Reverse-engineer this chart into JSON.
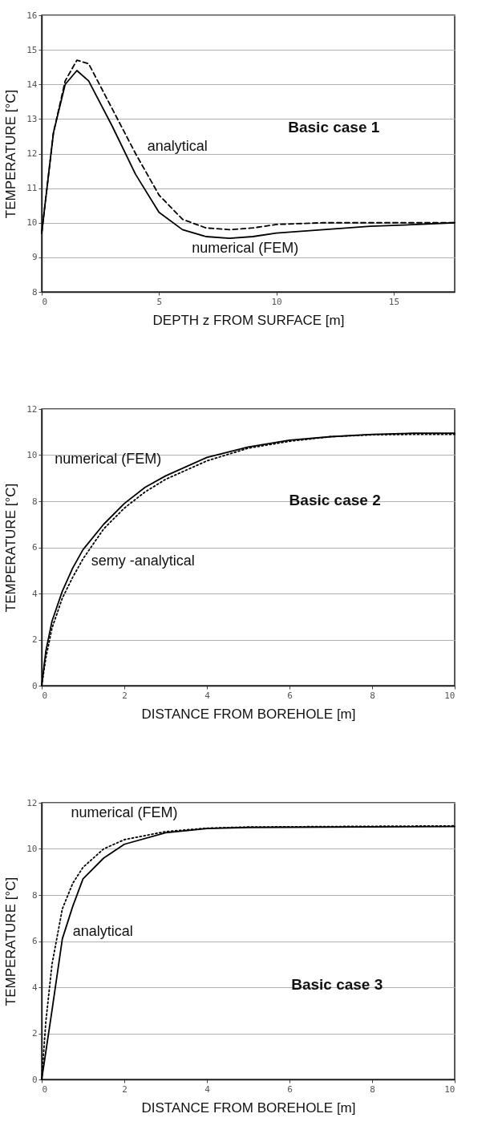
{
  "chart_data": [
    {
      "type": "line",
      "xlabel": "DEPTH  z  FROM  SURFACE  [m]",
      "ylabel": "TEMPERATURE  [°C]",
      "xlim": [
        0,
        17.6
      ],
      "ylim": [
        8,
        16
      ],
      "xticks": [
        0,
        5,
        10,
        15
      ],
      "yticks": [
        8,
        9,
        10,
        11,
        12,
        13,
        14,
        15,
        16
      ],
      "grid": "y",
      "marker": "none",
      "annotations": [
        "Basic case 1"
      ],
      "x": [
        0,
        0.5,
        1,
        1.5,
        2,
        3,
        4,
        5,
        6,
        7,
        8,
        9,
        10,
        12,
        14,
        16,
        17.6
      ],
      "series": [
        {
          "name": "numerical (FEM)",
          "color": "#000000",
          "line_style": "solid",
          "values": [
            9.7,
            12.6,
            14.0,
            14.4,
            14.1,
            12.8,
            11.4,
            10.3,
            9.8,
            9.6,
            9.55,
            9.6,
            9.7,
            9.8,
            9.9,
            9.95,
            10.0
          ]
        },
        {
          "name": "analytical",
          "color": "#000000",
          "line_style": "dashed",
          "values": [
            9.7,
            12.6,
            14.1,
            14.7,
            14.6,
            13.3,
            12.0,
            10.8,
            10.1,
            9.85,
            9.8,
            9.85,
            9.95,
            10.0,
            10.0,
            10.0,
            10.0
          ]
        }
      ]
    },
    {
      "type": "line",
      "xlabel": "DISTANCE  FROM  BOREHOLE  [m]",
      "ylabel": "TEMPERATURE  [°C]",
      "xlim": [
        0,
        10
      ],
      "ylim": [
        0,
        12
      ],
      "xticks": [
        0,
        2,
        4,
        6,
        8,
        10
      ],
      "yticks": [
        0,
        2,
        4,
        6,
        8,
        10,
        12
      ],
      "grid": "y",
      "marker": "none",
      "annotations": [
        "Basic case 2"
      ],
      "x": [
        0,
        0.1,
        0.25,
        0.5,
        0.75,
        1,
        1.5,
        2,
        2.5,
        3,
        4,
        5,
        6,
        7,
        8,
        9,
        10
      ],
      "series": [
        {
          "name": "numerical (FEM)",
          "color": "#000000",
          "line_style": "solid",
          "values": [
            0,
            1.5,
            2.8,
            4.1,
            5.1,
            5.9,
            7.0,
            7.9,
            8.6,
            9.1,
            9.9,
            10.35,
            10.65,
            10.8,
            10.9,
            10.95,
            10.95
          ]
        },
        {
          "name": "semy -analytical",
          "color": "#000000",
          "line_style": "dotted",
          "values": [
            0,
            1.2,
            2.5,
            3.8,
            4.7,
            5.5,
            6.8,
            7.7,
            8.4,
            8.95,
            9.75,
            10.3,
            10.6,
            10.8,
            10.88,
            10.9,
            10.9
          ]
        }
      ]
    },
    {
      "type": "line",
      "xlabel": "DISTANCE  FROM  BOREHOLE  [m]",
      "ylabel": "TEMPERATURE  [°C]",
      "xlim": [
        0,
        10
      ],
      "ylim": [
        0,
        12
      ],
      "xticks": [
        0,
        2,
        4,
        6,
        8,
        10
      ],
      "yticks": [
        0,
        2,
        4,
        6,
        8,
        10,
        12
      ],
      "grid": "y",
      "marker": "none",
      "annotations": [
        "Basic case 3"
      ],
      "x": [
        0,
        0.1,
        0.25,
        0.5,
        0.75,
        1,
        1.5,
        2,
        3,
        4,
        5,
        10
      ],
      "series": [
        {
          "name": "numerical (FEM)",
          "color": "#000000",
          "line_style": "dotted",
          "values": [
            0,
            2.5,
            5.0,
            7.4,
            8.5,
            9.2,
            10.0,
            10.4,
            10.75,
            10.9,
            10.95,
            11.0
          ]
        },
        {
          "name": "analytical",
          "color": "#000000",
          "line_style": "solid",
          "values": [
            0,
            1.2,
            3.0,
            6.1,
            7.5,
            8.7,
            9.6,
            10.2,
            10.7,
            10.88,
            10.93,
            10.97
          ]
        }
      ]
    }
  ]
}
